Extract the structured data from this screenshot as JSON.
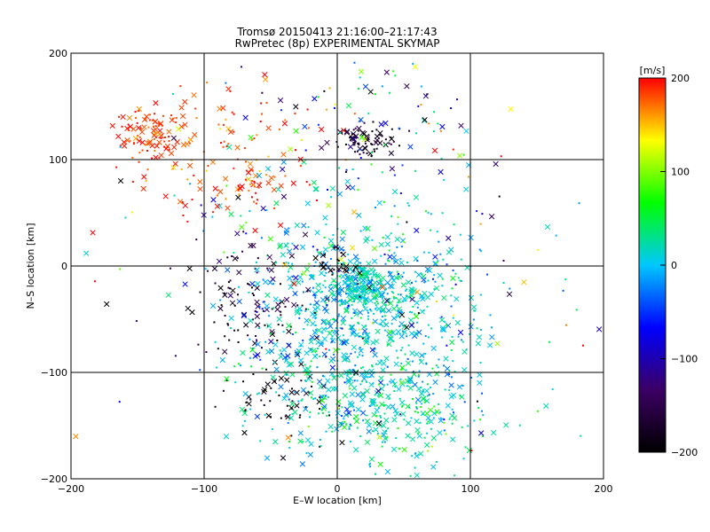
{
  "chart_data": {
    "type": "scatter",
    "title_line1": "Tromsø 20150413 21:16:00–21:17:43",
    "title_line2": "RwPretec (8p) EXPERIMENTAL SKYMAP",
    "xlabel": "E–W location [km]",
    "ylabel": "N–S location [km]",
    "xlim": [
      -200,
      200
    ],
    "ylim": [
      -200,
      200
    ],
    "xticks": [
      -200,
      -100,
      0,
      100,
      200
    ],
    "yticks": [
      -200,
      -100,
      0,
      100,
      200
    ],
    "grid": true,
    "markers": [
      "cross",
      "dot"
    ],
    "colorbar": {
      "label": "[m/s]",
      "range": [
        -200,
        200
      ],
      "ticks": [
        200,
        100,
        0,
        -100,
        -200
      ],
      "palette": [
        "#000000",
        "#3c0064",
        "#0000ff",
        "#00c8ff",
        "#00ff00",
        "#ffff00",
        "#ff0000"
      ]
    },
    "clusters": [
      {
        "cx": -140,
        "cy": 125,
        "sx": 12,
        "sy": 12,
        "n": 80,
        "vmean": 190,
        "vsd": 12
      },
      {
        "cx": -90,
        "cy": 110,
        "sx": 45,
        "sy": 35,
        "n": 130,
        "vmean": 185,
        "vsd": 18
      },
      {
        "cx": -60,
        "cy": 80,
        "sx": 10,
        "sy": 8,
        "n": 30,
        "vmean": 180,
        "vsd": 20
      },
      {
        "cx": 20,
        "cy": 118,
        "sx": 14,
        "sy": 7,
        "n": 70,
        "vmean": -175,
        "vsd": 18
      },
      {
        "cx": 20,
        "cy": 130,
        "sx": 40,
        "sy": 30,
        "n": 80,
        "vmean": -20,
        "vsd": 95
      },
      {
        "cx": -60,
        "cy": -30,
        "sx": 25,
        "sy": 25,
        "n": 100,
        "vmean": -170,
        "vsd": 30
      },
      {
        "cx": -40,
        "cy": -120,
        "sx": 20,
        "sy": 20,
        "n": 60,
        "vmean": -190,
        "vsd": 15
      },
      {
        "cx": 20,
        "cy": -60,
        "sx": 45,
        "sy": 55,
        "n": 900,
        "vmean": 5,
        "vsd": 28
      },
      {
        "cx": 20,
        "cy": -20,
        "sx": 15,
        "sy": 12,
        "n": 200,
        "vmean": 15,
        "vsd": 18
      },
      {
        "cx": 40,
        "cy": -140,
        "sx": 35,
        "sy": 25,
        "n": 160,
        "vmean": 25,
        "vsd": 30
      },
      {
        "cx": 0,
        "cy": 0,
        "sx": 95,
        "sy": 105,
        "n": 220,
        "vmean": 0,
        "vsd": 130
      },
      {
        "cx": 0,
        "cy": 0,
        "sx": 8,
        "sy": 8,
        "n": 25,
        "vmean": -195,
        "vsd": 8
      }
    ]
  }
}
